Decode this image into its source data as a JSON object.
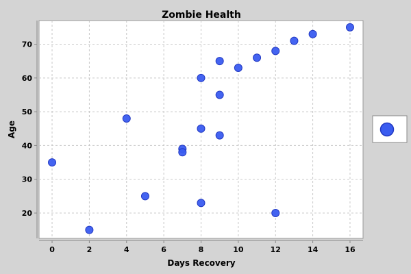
{
  "chart_data": {
    "type": "scatter",
    "title": "Zombie Health",
    "xlabel": "Days Recovery",
    "ylabel": "Age",
    "xlim": [
      -0.7,
      16.7
    ],
    "ylim": [
      12.5,
      77
    ],
    "xticks": [
      0,
      2,
      4,
      6,
      8,
      10,
      12,
      14,
      16
    ],
    "yticks": [
      20,
      30,
      40,
      50,
      60,
      70
    ],
    "grid": true,
    "legend": "right",
    "point_color": "#3a5cf0",
    "point_stroke": "#2239c2",
    "series": [
      {
        "points": [
          {
            "x": 0,
            "y": 35
          },
          {
            "x": 2,
            "y": 15
          },
          {
            "x": 4,
            "y": 48
          },
          {
            "x": 5,
            "y": 25
          },
          {
            "x": 7,
            "y": 39
          },
          {
            "x": 7,
            "y": 38
          },
          {
            "x": 8,
            "y": 60
          },
          {
            "x": 8,
            "y": 45
          },
          {
            "x": 8,
            "y": 23
          },
          {
            "x": 9,
            "y": 65
          },
          {
            "x": 9,
            "y": 55
          },
          {
            "x": 9,
            "y": 43
          },
          {
            "x": 10,
            "y": 63
          },
          {
            "x": 11,
            "y": 66
          },
          {
            "x": 12,
            "y": 68
          },
          {
            "x": 12,
            "y": 20
          },
          {
            "x": 13,
            "y": 71
          },
          {
            "x": 14,
            "y": 73
          },
          {
            "x": 16,
            "y": 75
          }
        ]
      }
    ]
  }
}
